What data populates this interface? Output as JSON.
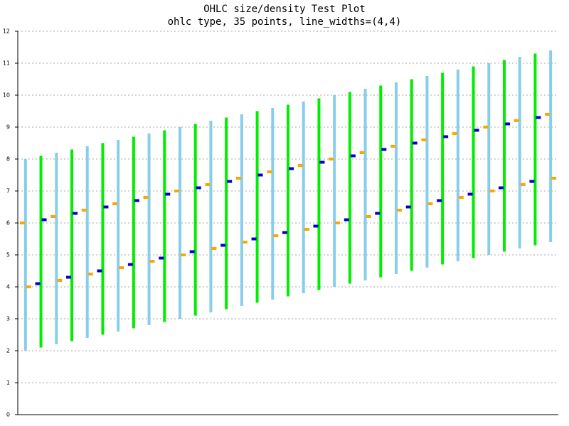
{
  "chart_data": {
    "type": "ohlc",
    "title": "OHLC size/density Test Plot",
    "subtitle": "ohlc type, 35 points, line_widths=(4,4)",
    "categories": [
      null,
      null,
      null,
      null,
      null,
      null,
      null,
      null,
      null,
      null,
      null,
      null,
      null,
      null,
      null,
      null,
      null,
      null,
      null,
      null,
      null,
      null,
      null,
      null,
      null,
      null,
      null,
      null,
      null,
      null,
      null,
      null,
      null,
      null,
      null
    ],
    "open": [
      6,
      4.1,
      6.2,
      4.3,
      6.4,
      4.5,
      6.6,
      4.7,
      6.8,
      4.9,
      7.0,
      5.1,
      7.2,
      5.3,
      7.4,
      5.5,
      7.6,
      5.7,
      7.8,
      5.9,
      8.0,
      6.1,
      8.2,
      6.3,
      8.4,
      6.5,
      8.6,
      6.7,
      8.8,
      6.9,
      9.0,
      7.1,
      9.2,
      7.3,
      9.4
    ],
    "high": [
      8,
      8.1,
      8.2,
      8.3,
      8.4,
      8.5,
      8.6,
      8.7,
      8.8,
      8.9,
      9.0,
      9.1,
      9.2,
      9.3,
      9.4,
      9.5,
      9.6,
      9.7,
      9.8,
      9.9,
      10.0,
      10.1,
      10.2,
      10.3,
      10.4,
      10.5,
      10.6,
      10.7,
      10.8,
      10.9,
      11.0,
      11.1,
      11.2,
      11.3,
      11.4
    ],
    "low": [
      2,
      2.1,
      2.2,
      2.3,
      2.4,
      2.5,
      2.6,
      2.7,
      2.8,
      2.9,
      3.0,
      3.1,
      3.2,
      3.3,
      3.4,
      3.5,
      3.6,
      3.7,
      3.8,
      3.9,
      4.0,
      4.1,
      4.2,
      4.3,
      4.4,
      4.5,
      4.6,
      4.7,
      4.8,
      4.9,
      5.0,
      5.1,
      5.2,
      5.3,
      5.4
    ],
    "close": [
      4,
      6.1,
      4.2,
      6.3,
      4.4,
      6.5,
      4.6,
      6.7,
      4.8,
      6.9,
      5.0,
      7.1,
      5.2,
      7.3,
      5.4,
      7.5,
      5.6,
      7.7,
      5.8,
      7.9,
      6.0,
      8.1,
      6.2,
      8.3,
      6.4,
      8.5,
      6.6,
      8.7,
      6.8,
      8.9,
      7.0,
      9.1,
      7.2,
      9.3,
      7.4
    ],
    "up_color": "#00ee00",
    "down_color": "#87ceeb",
    "up_tick_color": "#0000cc",
    "down_tick_color": "#ffa500",
    "ylim": [
      0,
      12
    ],
    "yticks": [
      0,
      1,
      2,
      3,
      4,
      5,
      6,
      7,
      8,
      9,
      10,
      11,
      12
    ],
    "grid": true
  }
}
